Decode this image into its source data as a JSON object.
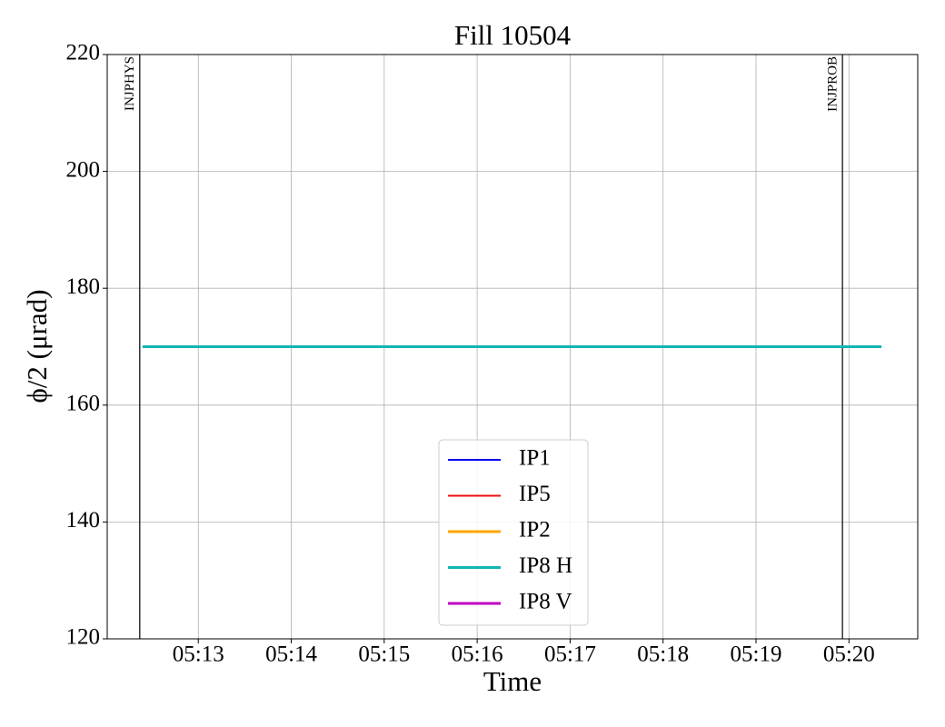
{
  "chart_data": {
    "type": "line",
    "title": "Fill 10504",
    "xlabel": "Time",
    "ylabel": "ϕ/2 (μrad)",
    "x": [
      312.4,
      320.35
    ],
    "series": [
      {
        "name": "IP1",
        "color": "#0000ee",
        "values": [
          null,
          null
        ]
      },
      {
        "name": "IP5",
        "color": "#ee1111",
        "values": [
          null,
          null
        ]
      },
      {
        "name": "IP2",
        "color": "#ffa500",
        "values": [
          null,
          null
        ]
      },
      {
        "name": "IP8 H",
        "color": "#13b5b5",
        "values": [
          170,
          170
        ]
      },
      {
        "name": "IP8 V",
        "color": "#c000c0",
        "values": [
          null,
          null
        ]
      }
    ],
    "xlim": [
      312.02,
      320.74
    ],
    "xticks": [
      {
        "value": 313,
        "label": "05:13"
      },
      {
        "value": 314,
        "label": "05:14"
      },
      {
        "value": 315,
        "label": "05:15"
      },
      {
        "value": 316,
        "label": "05:16"
      },
      {
        "value": 317,
        "label": "05:17"
      },
      {
        "value": 318,
        "label": "05:18"
      },
      {
        "value": 319,
        "label": "05:19"
      },
      {
        "value": 320,
        "label": "05:20"
      }
    ],
    "ylim": [
      120,
      220
    ],
    "yticks": [
      120,
      140,
      160,
      180,
      200,
      220
    ],
    "grid": true,
    "legend": "lower center",
    "annotations": [
      {
        "x": 312.37,
        "text": "INJPHYS"
      },
      {
        "x": 319.93,
        "text": "INJPROB"
      }
    ]
  }
}
